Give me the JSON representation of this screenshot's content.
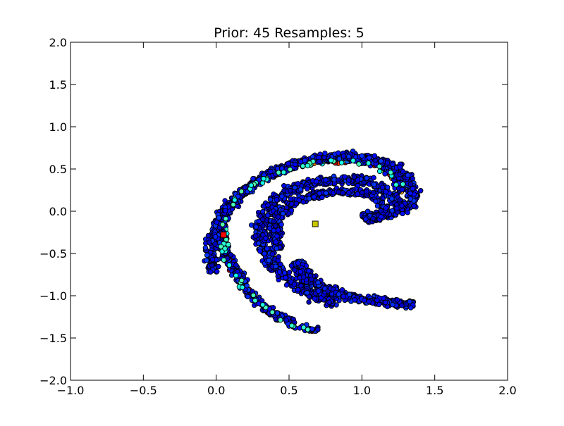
{
  "chart_data": {
    "type": "scatter",
    "title": "Prior: 45 Resamples: 5",
    "xlabel": "",
    "ylabel": "",
    "xlim": [
      -1.0,
      2.0
    ],
    "ylim": [
      -2.0,
      2.0
    ],
    "grid": false,
    "xticks": [
      -1.0,
      -0.5,
      0.0,
      0.5,
      1.0,
      1.5,
      2.0
    ],
    "yticks": [
      -2.0,
      -1.5,
      -1.0,
      -0.5,
      0.0,
      0.5,
      1.0,
      1.5,
      2.0
    ],
    "xtick_labels": [
      "−1.0",
      "−0.5",
      "0.0",
      "0.5",
      "1.0",
      "1.5",
      "2.0"
    ],
    "ytick_labels": [
      "−2.0",
      "−1.5",
      "−1.0",
      "−0.5",
      "0.0",
      "0.5",
      "1.0",
      "1.5",
      "2.0"
    ],
    "colormap": "jet",
    "marker_edge_color": "#000000",
    "outer_arm": {
      "description_free": true,
      "centerline": [
        [
          0.7,
          -1.42
        ],
        [
          0.55,
          -1.35
        ],
        [
          0.4,
          -1.22
        ],
        [
          0.28,
          -1.05
        ],
        [
          0.18,
          -0.85
        ],
        [
          0.1,
          -0.62
        ],
        [
          0.04,
          -0.4
        ],
        [
          0.02,
          -0.2
        ],
        [
          0.06,
          0.0
        ],
        [
          0.14,
          0.16
        ],
        [
          0.25,
          0.32
        ],
        [
          0.38,
          0.45
        ],
        [
          0.52,
          0.55
        ],
        [
          0.68,
          0.61
        ],
        [
          0.84,
          0.64
        ],
        [
          0.98,
          0.63
        ],
        [
          1.1,
          0.58
        ],
        [
          1.2,
          0.48
        ],
        [
          1.27,
          0.35
        ],
        [
          1.27,
          0.24
        ]
      ],
      "inner_centerline": [
        [
          -0.02,
          -0.72
        ],
        [
          -0.04,
          -0.5
        ],
        [
          -0.02,
          -0.28
        ],
        [
          0.04,
          -0.06
        ],
        [
          0.12,
          0.12
        ],
        [
          0.22,
          0.28
        ],
        [
          0.34,
          0.42
        ],
        [
          0.48,
          0.53
        ],
        [
          0.64,
          0.61
        ],
        [
          0.8,
          0.66
        ],
        [
          0.96,
          0.66
        ],
        [
          1.1,
          0.62
        ],
        [
          1.22,
          0.54
        ],
        [
          1.31,
          0.4
        ],
        [
          1.36,
          0.22
        ],
        [
          1.34,
          0.08
        ],
        [
          1.26,
          -0.02
        ],
        [
          1.12,
          -0.06
        ],
        [
          1.0,
          -0.04
        ]
      ],
      "colored_band": [
        [
          0.68,
          -1.42
        ],
        [
          0.52,
          -1.35
        ],
        [
          0.36,
          -1.2
        ],
        [
          0.24,
          -1.0
        ],
        [
          0.14,
          -0.78
        ],
        [
          0.07,
          -0.55
        ],
        [
          0.05,
          -0.32
        ],
        [
          0.06,
          -0.1
        ],
        [
          0.12,
          0.1
        ],
        [
          0.22,
          0.26
        ],
        [
          0.34,
          0.4
        ],
        [
          0.48,
          0.49
        ],
        [
          0.64,
          0.56
        ],
        [
          0.8,
          0.6
        ],
        [
          0.96,
          0.6
        ],
        [
          1.08,
          0.56
        ],
        [
          1.18,
          0.46
        ],
        [
          1.25,
          0.34
        ],
        [
          1.27,
          0.22
        ]
      ]
    },
    "inner_arm": {
      "centerline": [
        [
          0.83,
          -1.1
        ],
        [
          0.7,
          -1.02
        ],
        [
          0.56,
          -0.9
        ],
        [
          0.44,
          -0.74
        ],
        [
          0.36,
          -0.56
        ],
        [
          0.31,
          -0.36
        ],
        [
          0.31,
          -0.16
        ],
        [
          0.35,
          0.02
        ],
        [
          0.43,
          0.16
        ],
        [
          0.55,
          0.28
        ],
        [
          0.7,
          0.35
        ],
        [
          0.86,
          0.38
        ],
        [
          1.0,
          0.36
        ],
        [
          1.12,
          0.28
        ],
        [
          1.22,
          0.16
        ],
        [
          1.28,
          0.05
        ]
      ],
      "lower_tail": [
        [
          0.55,
          -0.6
        ],
        [
          0.62,
          -0.78
        ],
        [
          0.74,
          -0.92
        ],
        [
          0.88,
          -1.0
        ],
        [
          1.02,
          -1.04
        ],
        [
          1.16,
          -1.07
        ],
        [
          1.28,
          -1.1
        ],
        [
          1.36,
          -1.1
        ]
      ],
      "upper_inner": [
        [
          0.43,
          -0.44
        ],
        [
          0.4,
          -0.26
        ],
        [
          0.42,
          -0.1
        ],
        [
          0.48,
          0.04
        ],
        [
          0.58,
          0.14
        ],
        [
          0.72,
          0.21
        ],
        [
          0.88,
          0.24
        ],
        [
          1.0,
          0.22
        ],
        [
          1.1,
          0.16
        ],
        [
          1.16,
          0.04
        ],
        [
          1.12,
          -0.08
        ],
        [
          1.02,
          -0.1
        ]
      ]
    },
    "highlighted_points": [
      {
        "label": "red-square",
        "x": 0.05,
        "y": -0.28,
        "color": "#ff0000"
      },
      {
        "label": "yellow-square",
        "x": 0.68,
        "y": -0.15,
        "color": "#c8c800"
      }
    ]
  }
}
